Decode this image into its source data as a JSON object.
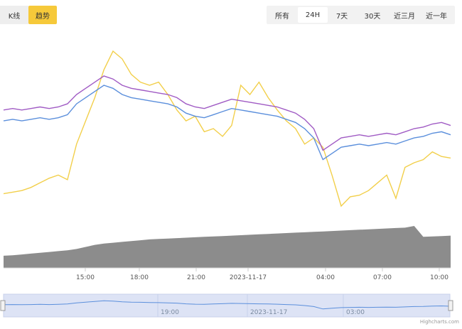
{
  "view_toggle": {
    "kline_label": "K线",
    "trend_label": "趋势",
    "active": "trend"
  },
  "range_tabs": [
    {
      "label": "所有",
      "active": false
    },
    {
      "label": "24H",
      "active": true
    },
    {
      "label": "7天",
      "active": false
    },
    {
      "label": "30天",
      "active": false
    },
    {
      "label": "近三月",
      "active": false
    },
    {
      "label": "近一年",
      "active": false
    }
  ],
  "x_axis_ticks": [
    "15:00",
    "18:00",
    "21:00",
    "2023-11-17",
    "04:00",
    "07:00",
    "10:00"
  ],
  "navigator_ticks": [
    "19:00",
    "2023-11-17",
    "03:00"
  ],
  "credit": "Highcharts.com",
  "colors": {
    "yellow_series": "#f2cf4a",
    "purple_series": "#a05bc4",
    "blue_series": "#5b8fdc",
    "volume_area": "#8c8c8c",
    "navigator_fill": "#dde3f5",
    "navigator_line": "#5b8fdc",
    "toggle_active": "#f6c93a"
  },
  "chart_data": {
    "type": "line",
    "time_axis": "2023-11-16 12:30 to 2023-11-17 10:30 (24H)",
    "series": [
      {
        "color": "yellow",
        "values": [
          0.08,
          0.09,
          0.1,
          0.12,
          0.15,
          0.18,
          0.2,
          0.17,
          0.4,
          0.55,
          0.7,
          0.88,
          1.0,
          0.95,
          0.85,
          0.8,
          0.78,
          0.8,
          0.72,
          0.62,
          0.55,
          0.58,
          0.48,
          0.5,
          0.45,
          0.52,
          0.78,
          0.72,
          0.8,
          0.7,
          0.62,
          0.55,
          0.5,
          0.4,
          0.44,
          0.38,
          0.2,
          0.0,
          0.06,
          0.07,
          0.1,
          0.15,
          0.2,
          0.05,
          0.25,
          0.28,
          0.3,
          0.35,
          0.32,
          0.31
        ]
      },
      {
        "color": "purple",
        "values": [
          0.62,
          0.63,
          0.62,
          0.63,
          0.64,
          0.63,
          0.64,
          0.66,
          0.72,
          0.76,
          0.8,
          0.84,
          0.82,
          0.78,
          0.76,
          0.75,
          0.74,
          0.73,
          0.72,
          0.7,
          0.66,
          0.64,
          0.63,
          0.65,
          0.67,
          0.69,
          0.68,
          0.67,
          0.66,
          0.65,
          0.64,
          0.62,
          0.6,
          0.56,
          0.5,
          0.36,
          0.4,
          0.44,
          0.45,
          0.46,
          0.45,
          0.46,
          0.47,
          0.46,
          0.48,
          0.5,
          0.51,
          0.53,
          0.54,
          0.52
        ]
      },
      {
        "color": "blue",
        "values": [
          0.55,
          0.56,
          0.55,
          0.56,
          0.57,
          0.56,
          0.57,
          0.59,
          0.66,
          0.7,
          0.74,
          0.78,
          0.76,
          0.72,
          0.7,
          0.69,
          0.68,
          0.67,
          0.66,
          0.64,
          0.6,
          0.58,
          0.57,
          0.59,
          0.61,
          0.63,
          0.62,
          0.61,
          0.6,
          0.59,
          0.58,
          0.56,
          0.54,
          0.5,
          0.44,
          0.3,
          0.34,
          0.38,
          0.39,
          0.4,
          0.39,
          0.4,
          0.41,
          0.4,
          0.42,
          0.44,
          0.45,
          0.47,
          0.48,
          0.46
        ]
      },
      {
        "name": "volume",
        "type": "area",
        "values": [
          0.29,
          0.3,
          0.32,
          0.34,
          0.36,
          0.38,
          0.4,
          0.42,
          0.45,
          0.5,
          0.55,
          0.58,
          0.6,
          0.62,
          0.64,
          0.66,
          0.68,
          0.69,
          0.7,
          0.71,
          0.72,
          0.73,
          0.74,
          0.75,
          0.76,
          0.77,
          0.78,
          0.79,
          0.8,
          0.81,
          0.82,
          0.83,
          0.84,
          0.85,
          0.86,
          0.87,
          0.88,
          0.89,
          0.9,
          0.91,
          0.92,
          0.93,
          0.94,
          0.95,
          0.96,
          1.0,
          0.74,
          0.75,
          0.76,
          0.77
        ]
      }
    ]
  }
}
